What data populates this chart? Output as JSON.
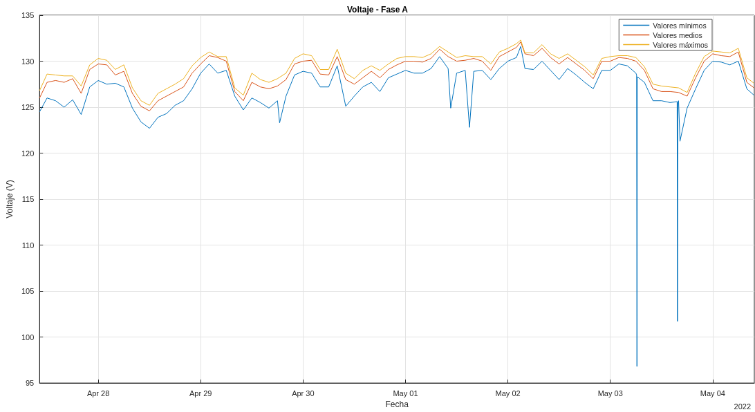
{
  "chart_data": {
    "type": "line",
    "title": "Voltaje - Fase A",
    "xlabel": "Fecha",
    "ylabel": "Voltaje (V)",
    "annotations": [
      "2022"
    ],
    "xlim": [
      "2022-04-27T10:15",
      "2022-05-04T09:45"
    ],
    "xticks": [
      {
        "value": "2022-04-28",
        "label": "Apr 28"
      },
      {
        "value": "2022-04-29",
        "label": "Apr 29"
      },
      {
        "value": "2022-04-30",
        "label": "Apr 30"
      },
      {
        "value": "2022-05-01",
        "label": "May 01"
      },
      {
        "value": "2022-05-02",
        "label": "May 02"
      },
      {
        "value": "2022-05-03",
        "label": "May 03"
      },
      {
        "value": "2022-05-04",
        "label": "May 04"
      }
    ],
    "ylim": [
      95,
      135
    ],
    "yticks": [
      95,
      100,
      105,
      110,
      115,
      120,
      125,
      130,
      135
    ],
    "grid": true,
    "legend": "top right",
    "x": [
      "2022-04-27T10:15",
      "2022-04-27T12:00",
      "2022-04-27T14:00",
      "2022-04-27T16:00",
      "2022-04-27T18:00",
      "2022-04-27T20:00",
      "2022-04-27T22:00",
      "2022-04-28T00:00",
      "2022-04-28T02:00",
      "2022-04-28T04:00",
      "2022-04-28T06:00",
      "2022-04-28T08:00",
      "2022-04-28T10:00",
      "2022-04-28T12:00",
      "2022-04-28T14:00",
      "2022-04-28T16:00",
      "2022-04-28T18:00",
      "2022-04-28T20:00",
      "2022-04-28T22:00",
      "2022-04-29T00:00",
      "2022-04-29T02:00",
      "2022-04-29T04:00",
      "2022-04-29T06:00",
      "2022-04-29T08:00",
      "2022-04-29T10:00",
      "2022-04-29T12:00",
      "2022-04-29T14:00",
      "2022-04-29T16:00",
      "2022-04-29T18:00",
      "2022-04-29T20:00",
      "2022-04-29T22:00",
      "2022-04-30T00:00",
      "2022-04-30T02:00",
      "2022-04-30T04:00",
      "2022-04-30T06:00",
      "2022-04-30T08:00",
      "2022-04-30T10:00",
      "2022-04-30T12:00",
      "2022-04-30T14:00",
      "2022-04-30T16:00",
      "2022-04-30T18:00",
      "2022-04-30T20:00",
      "2022-04-30T22:00",
      "2022-05-01T00:00",
      "2022-05-01T02:00",
      "2022-05-01T04:00",
      "2022-05-01T06:00",
      "2022-05-01T08:00",
      "2022-05-01T10:00",
      "2022-05-01T12:00",
      "2022-05-01T14:00",
      "2022-05-01T16:00",
      "2022-05-01T18:00",
      "2022-05-01T20:00",
      "2022-05-01T22:00",
      "2022-05-02T00:00",
      "2022-05-02T02:00",
      "2022-05-02T03:00",
      "2022-05-02T04:00",
      "2022-05-02T06:00",
      "2022-05-02T08:00",
      "2022-05-02T10:00",
      "2022-05-02T12:00",
      "2022-05-02T14:00",
      "2022-05-02T16:00",
      "2022-05-02T18:00",
      "2022-05-02T20:00",
      "2022-05-02T22:00",
      "2022-05-03T00:00",
      "2022-05-03T02:00",
      "2022-05-03T04:00",
      "2022-05-03T06:00",
      "2022-05-03T08:00",
      "2022-05-03T10:00",
      "2022-05-03T12:00",
      "2022-05-03T14:00",
      "2022-05-03T16:00",
      "2022-05-03T18:00",
      "2022-05-03T20:00",
      "2022-05-03T22:00",
      "2022-05-04T00:00",
      "2022-05-04T02:00",
      "2022-05-04T04:00",
      "2022-05-04T06:00",
      "2022-05-04T08:00",
      "2022-05-04T09:40"
    ],
    "series": [
      {
        "name": "Valores mínimos",
        "color": "#0072bd",
        "x": [
          "2022-04-27T10:15",
          "2022-04-27T12:00",
          "2022-04-27T14:00",
          "2022-04-27T16:00",
          "2022-04-27T18:00",
          "2022-04-27T20:00",
          "2022-04-27T22:00",
          "2022-04-28T00:00",
          "2022-04-28T02:00",
          "2022-04-28T04:00",
          "2022-04-28T06:00",
          "2022-04-28T08:00",
          "2022-04-28T10:00",
          "2022-04-28T12:00",
          "2022-04-28T14:00",
          "2022-04-28T16:00",
          "2022-04-28T18:00",
          "2022-04-28T20:00",
          "2022-04-28T22:00",
          "2022-04-29T00:00",
          "2022-04-29T02:00",
          "2022-04-29T04:00",
          "2022-04-29T06:00",
          "2022-04-29T08:00",
          "2022-04-29T10:00",
          "2022-04-29T12:00",
          "2022-04-29T14:00",
          "2022-04-29T16:00",
          "2022-04-29T18:00",
          "2022-04-29T18:30",
          "2022-04-29T20:00",
          "2022-04-29T22:00",
          "2022-04-30T00:00",
          "2022-04-30T02:00",
          "2022-04-30T04:00",
          "2022-04-30T06:00",
          "2022-04-30T08:00",
          "2022-04-30T10:00",
          "2022-04-30T12:00",
          "2022-04-30T14:00",
          "2022-04-30T16:00",
          "2022-04-30T18:00",
          "2022-04-30T20:00",
          "2022-04-30T22:00",
          "2022-05-01T00:00",
          "2022-05-01T02:00",
          "2022-05-01T04:00",
          "2022-05-01T06:00",
          "2022-05-01T08:00",
          "2022-05-01T10:00",
          "2022-05-01T10:36",
          "2022-05-01T12:00",
          "2022-05-01T14:00",
          "2022-05-01T15:00",
          "2022-05-01T16:00",
          "2022-05-01T18:00",
          "2022-05-01T20:00",
          "2022-05-01T22:00",
          "2022-05-02T00:00",
          "2022-05-02T02:00",
          "2022-05-02T03:00",
          "2022-05-02T04:00",
          "2022-05-02T06:00",
          "2022-05-02T08:00",
          "2022-05-02T10:00",
          "2022-05-02T12:00",
          "2022-05-02T14:00",
          "2022-05-02T16:00",
          "2022-05-02T18:00",
          "2022-05-02T20:00",
          "2022-05-02T22:00",
          "2022-05-03T00:00",
          "2022-05-03T02:00",
          "2022-05-03T04:00",
          "2022-05-03T06:00",
          "2022-05-03T06:10",
          "2022-05-03T06:15",
          "2022-05-03T06:20",
          "2022-05-03T08:00",
          "2022-05-03T10:00",
          "2022-05-03T12:00",
          "2022-05-03T14:00",
          "2022-05-03T15:40",
          "2022-05-03T15:45",
          "2022-05-03T15:50",
          "2022-05-03T16:00",
          "2022-05-03T16:20",
          "2022-05-03T18:00",
          "2022-05-03T20:00",
          "2022-05-03T22:00",
          "2022-05-04T00:00",
          "2022-05-04T02:00",
          "2022-05-04T04:00",
          "2022-05-04T06:00",
          "2022-05-04T08:00",
          "2022-05-04T09:40"
        ],
        "values": [
          124.5,
          126.0,
          125.7,
          125.0,
          125.8,
          124.2,
          127.2,
          127.9,
          127.5,
          127.6,
          127.2,
          124.9,
          123.4,
          122.7,
          123.9,
          124.3,
          125.2,
          125.7,
          127.0,
          128.7,
          129.7,
          128.7,
          129.0,
          126.2,
          124.7,
          126.0,
          125.5,
          124.9,
          125.7,
          123.3,
          126.2,
          128.5,
          128.9,
          128.7,
          127.2,
          127.2,
          129.5,
          125.1,
          126.2,
          127.2,
          127.7,
          126.7,
          128.2,
          128.6,
          129.0,
          128.7,
          128.7,
          129.2,
          130.5,
          129.2,
          124.9,
          128.7,
          129.0,
          122.8,
          128.9,
          129.0,
          128.0,
          129.2,
          130.0,
          130.4,
          131.6,
          129.2,
          129.1,
          130.0,
          129.0,
          128.0,
          129.2,
          128.5,
          127.7,
          127.0,
          129.0,
          129.0,
          129.7,
          129.5,
          128.7,
          128.5,
          96.8,
          128.3,
          127.7,
          125.7,
          125.7,
          125.5,
          125.6,
          101.7,
          125.5,
          125.7,
          121.3,
          124.9,
          127.0,
          129.0,
          130.0,
          129.9,
          129.6,
          130.0,
          127.0,
          126.3
        ]
      },
      {
        "name": "Valores medios",
        "color": "#d95319",
        "values": [
          126.0,
          127.7,
          127.9,
          127.7,
          128.1,
          126.5,
          129.1,
          129.7,
          129.6,
          128.5,
          128.9,
          126.5,
          125.1,
          124.6,
          125.7,
          126.2,
          126.7,
          127.2,
          128.7,
          129.7,
          130.6,
          130.4,
          130.0,
          126.7,
          125.7,
          127.7,
          127.2,
          127.0,
          127.3,
          128.0,
          129.7,
          130.0,
          130.1,
          128.6,
          128.5,
          130.5,
          128.0,
          127.5,
          128.2,
          128.9,
          128.2,
          129.1,
          129.6,
          130.0,
          130.0,
          129.9,
          130.3,
          131.3,
          130.5,
          130.0,
          130.1,
          130.3,
          130.0,
          129.0,
          130.5,
          131.0,
          131.5,
          132.1,
          130.8,
          130.6,
          131.4,
          130.4,
          129.7,
          130.4,
          129.7,
          129.0,
          128.1,
          130.0,
          130.0,
          130.4,
          130.3,
          130.0,
          129.0,
          127.0,
          126.7,
          126.7,
          126.6,
          126.2,
          128.2,
          130.0,
          130.8,
          130.6,
          130.5,
          131.0,
          127.7,
          127.1
        ]
      },
      {
        "name": "Valores máximos",
        "color": "#edb120",
        "values": [
          126.8,
          128.6,
          128.5,
          128.4,
          128.4,
          127.3,
          129.6,
          130.3,
          130.1,
          129.1,
          129.6,
          127.1,
          125.7,
          125.2,
          126.5,
          127.0,
          127.5,
          128.1,
          129.5,
          130.4,
          131.0,
          130.5,
          130.5,
          127.1,
          126.3,
          128.7,
          128.0,
          127.7,
          128.1,
          128.7,
          130.3,
          130.8,
          130.6,
          129.1,
          129.1,
          131.3,
          128.7,
          128.1,
          129.0,
          129.5,
          129.0,
          129.7,
          130.3,
          130.5,
          130.5,
          130.4,
          130.8,
          131.6,
          131.0,
          130.4,
          130.6,
          130.5,
          130.5,
          129.7,
          131.0,
          131.4,
          131.9,
          132.3,
          130.9,
          130.9,
          131.8,
          130.8,
          130.3,
          130.8,
          130.1,
          129.4,
          128.5,
          130.3,
          130.5,
          130.6,
          130.6,
          130.4,
          129.4,
          127.5,
          127.3,
          127.2,
          127.1,
          126.6,
          128.7,
          130.5,
          131.1,
          131.0,
          130.9,
          131.4,
          128.2,
          127.6
        ]
      }
    ]
  }
}
